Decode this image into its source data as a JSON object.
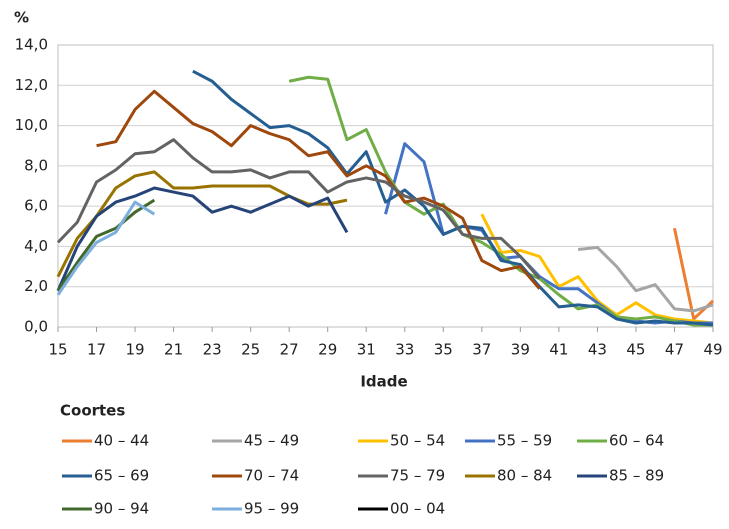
{
  "chart_data": {
    "type": "line",
    "y_unit": "%",
    "x_label": "Idade",
    "legend_title": "Coortes",
    "x": [
      15,
      16,
      17,
      18,
      19,
      20,
      21,
      22,
      23,
      24,
      25,
      26,
      27,
      28,
      29,
      30,
      31,
      32,
      33,
      34,
      35,
      36,
      37,
      38,
      39,
      40,
      41,
      42,
      43,
      44,
      45,
      46,
      47,
      48,
      49
    ],
    "xlim": [
      15,
      49
    ],
    "xticks": [
      15,
      17,
      19,
      21,
      23,
      25,
      27,
      29,
      31,
      33,
      35,
      37,
      39,
      41,
      43,
      45,
      47,
      49
    ],
    "ylim": [
      0,
      14
    ],
    "yticks": [
      {
        "value": 0,
        "label": "0,0"
      },
      {
        "value": 2,
        "label": "2,0"
      },
      {
        "value": 4,
        "label": "4,0"
      },
      {
        "value": 6,
        "label": "6,0"
      },
      {
        "value": 8,
        "label": "8,0"
      },
      {
        "value": 10,
        "label": "10,0"
      },
      {
        "value": 12,
        "label": "12,0"
      },
      {
        "value": 14,
        "label": "14,0"
      }
    ],
    "grid": true,
    "series": [
      {
        "name": "40 – 44",
        "color": "#ed7d31",
        "values": [
          null,
          null,
          null,
          null,
          null,
          null,
          null,
          null,
          null,
          null,
          null,
          null,
          null,
          null,
          null,
          null,
          null,
          null,
          null,
          null,
          null,
          null,
          null,
          null,
          null,
          null,
          null,
          null,
          null,
          null,
          null,
          null,
          4.9,
          0.4,
          1.3
        ]
      },
      {
        "name": "45 – 49",
        "color": "#a5a5a5",
        "values": [
          null,
          null,
          null,
          null,
          null,
          null,
          null,
          null,
          null,
          null,
          null,
          null,
          null,
          null,
          null,
          null,
          null,
          null,
          null,
          null,
          null,
          null,
          null,
          null,
          null,
          null,
          null,
          3.85,
          3.95,
          3.0,
          1.8,
          2.1,
          0.9,
          0.8,
          1.1
        ]
      },
      {
        "name": "50 – 54",
        "color": "#ffc000",
        "values": [
          null,
          null,
          null,
          null,
          null,
          null,
          null,
          null,
          null,
          null,
          null,
          null,
          null,
          null,
          null,
          null,
          null,
          null,
          null,
          null,
          null,
          null,
          5.6,
          3.7,
          3.8,
          3.5,
          2.0,
          2.5,
          1.3,
          0.6,
          1.2,
          0.6,
          0.4,
          0.3,
          0.2
        ]
      },
      {
        "name": "55 – 59",
        "color": "#4472c4",
        "values": [
          null,
          null,
          null,
          null,
          null,
          null,
          null,
          null,
          null,
          null,
          null,
          null,
          null,
          null,
          null,
          null,
          null,
          5.6,
          9.1,
          8.2,
          4.6,
          5.0,
          4.8,
          3.4,
          3.5,
          2.5,
          1.9,
          1.9,
          1.2,
          0.5,
          0.3,
          0.2,
          0.3,
          0.2,
          0.2
        ]
      },
      {
        "name": "60 – 64",
        "color": "#70ad47",
        "values": [
          null,
          null,
          null,
          null,
          null,
          null,
          null,
          null,
          null,
          null,
          null,
          null,
          12.2,
          12.4,
          12.3,
          9.3,
          9.8,
          7.7,
          6.2,
          5.6,
          6.1,
          4.6,
          4.2,
          3.6,
          2.8,
          2.4,
          1.6,
          0.9,
          1.1,
          0.5,
          0.4,
          0.5,
          0.3,
          0.1,
          0.1
        ]
      },
      {
        "name": "65 – 69",
        "color": "#255e91",
        "values": [
          null,
          null,
          null,
          null,
          null,
          null,
          null,
          12.7,
          12.2,
          11.3,
          10.6,
          9.9,
          10.0,
          9.6,
          8.9,
          7.6,
          8.7,
          6.2,
          6.8,
          6.0,
          4.6,
          5.0,
          4.9,
          3.3,
          3.1,
          2.0,
          1.0,
          1.1,
          1.0,
          0.4,
          0.2,
          0.3,
          0.2,
          0.2,
          0.1
        ]
      },
      {
        "name": "70 – 74",
        "color": "#9e480e",
        "values": [
          null,
          null,
          9.0,
          9.2,
          10.8,
          11.7,
          10.9,
          10.1,
          9.7,
          9.0,
          10.0,
          9.6,
          9.3,
          8.5,
          8.7,
          7.5,
          8.0,
          7.5,
          6.2,
          6.4,
          6.0,
          5.4,
          3.3,
          2.8,
          3.0,
          1.9,
          null,
          null,
          null,
          null,
          null,
          null,
          null,
          null,
          null
        ]
      },
      {
        "name": "75 – 79",
        "color": "#636363",
        "values": [
          4.2,
          5.2,
          7.2,
          7.8,
          8.6,
          8.7,
          9.3,
          8.4,
          7.7,
          7.7,
          7.8,
          7.4,
          7.7,
          7.7,
          6.7,
          7.2,
          7.4,
          7.2,
          6.5,
          6.2,
          5.8,
          4.6,
          4.4,
          4.4,
          3.5,
          2.4,
          null,
          null,
          null,
          null,
          null,
          null,
          null,
          null,
          null
        ]
      },
      {
        "name": "80 – 84",
        "color": "#997300",
        "values": [
          2.5,
          4.4,
          5.5,
          6.9,
          7.5,
          7.7,
          6.9,
          6.9,
          7.0,
          7.0,
          7.0,
          7.0,
          6.5,
          6.1,
          6.1,
          6.3,
          null,
          null,
          null,
          null,
          null,
          null,
          null,
          null,
          null,
          null,
          null,
          null,
          null,
          null,
          null,
          null,
          null,
          null,
          null
        ]
      },
      {
        "name": "85 – 89",
        "color": "#264478",
        "values": [
          1.8,
          4.0,
          5.5,
          6.2,
          6.5,
          6.9,
          6.7,
          6.5,
          5.7,
          6.0,
          5.7,
          6.1,
          6.5,
          6.0,
          6.4,
          4.7,
          null,
          null,
          null,
          null,
          null,
          null,
          null,
          null,
          null,
          null,
          null,
          null,
          null,
          null,
          null,
          null,
          null,
          null,
          null
        ]
      },
      {
        "name": "90 – 94",
        "color": "#43682b",
        "values": [
          1.8,
          3.2,
          4.5,
          4.9,
          5.7,
          6.3,
          null,
          null,
          null,
          null,
          null,
          null,
          null,
          null,
          null,
          null,
          null,
          null,
          null,
          null,
          null,
          null,
          null,
          null,
          null,
          null,
          null,
          null,
          null,
          null,
          null,
          null,
          null,
          null,
          null
        ]
      },
      {
        "name": "95 – 99",
        "color": "#7cafdd",
        "values": [
          1.6,
          3.0,
          4.2,
          4.7,
          6.2,
          5.6,
          null,
          null,
          null,
          null,
          null,
          null,
          null,
          null,
          null,
          null,
          null,
          null,
          null,
          null,
          null,
          null,
          null,
          null,
          null,
          null,
          null,
          null,
          null,
          null,
          null,
          null,
          null,
          null,
          null
        ]
      },
      {
        "name": "00 – 04",
        "color": "#000000",
        "values": [
          null,
          null,
          null,
          null,
          null,
          null,
          null,
          null,
          null,
          null,
          null,
          null,
          null,
          null,
          null,
          null,
          null,
          null,
          null,
          null,
          null,
          null,
          null,
          null,
          null,
          null,
          null,
          null,
          null,
          null,
          null,
          null,
          null,
          null,
          null
        ]
      }
    ]
  }
}
